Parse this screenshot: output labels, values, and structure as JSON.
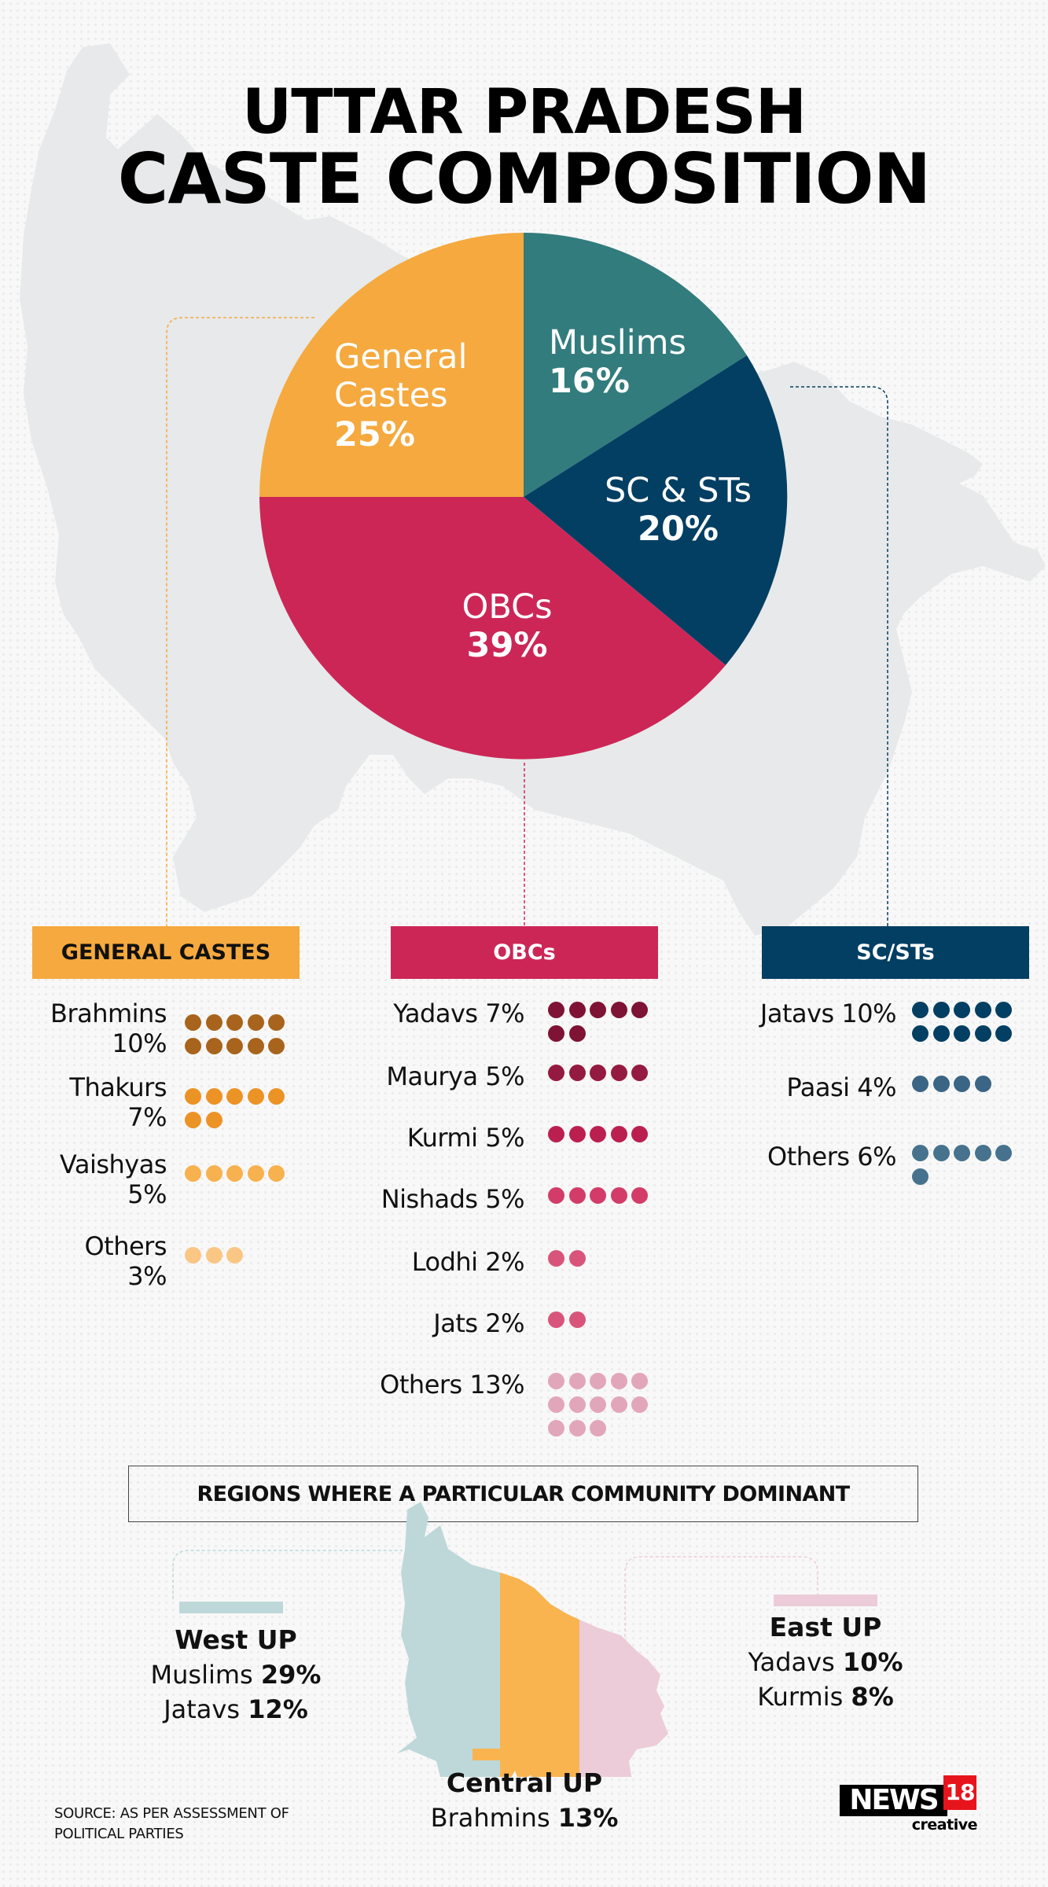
{
  "title": {
    "line1": "UTTAR PRADESH",
    "line2": "CASTE COMPOSITION"
  },
  "colors": {
    "general": "#f5a93e",
    "muslims": "#327c7d",
    "scst": "#033f63",
    "obc": "#cc2657",
    "map_bg": "#e7e9ea",
    "west_region": "#bed8d9",
    "central_region": "#f9b44f",
    "east_region": "#ecccd8"
  },
  "pie": {
    "slices": [
      {
        "label_line1": "General",
        "label_line2": "Castes",
        "value_text": "25%",
        "value": 25,
        "color": "#f5a93e"
      },
      {
        "label_line1": "Muslims",
        "label_line2": "",
        "value_text": "16%",
        "value": 16,
        "color": "#327c7d"
      },
      {
        "label_line1": "SC & STs",
        "label_line2": "",
        "value_text": "20%",
        "value": 20,
        "color": "#033f63"
      },
      {
        "label_line1": "OBCs",
        "label_line2": "",
        "value_text": "39%",
        "value": 39,
        "color": "#cc2657"
      }
    ]
  },
  "chart_data": {
    "type": "pie",
    "title": "UTTAR PRADESH CASTE COMPOSITION",
    "categories": [
      "General Castes",
      "Muslims",
      "SC & STs",
      "OBCs"
    ],
    "values": [
      25,
      16,
      20,
      39
    ],
    "colors": [
      "#f5a93e",
      "#327c7d",
      "#033f63",
      "#cc2657"
    ],
    "breakdowns": [
      {
        "group": "GENERAL CASTES",
        "type": "dot-count",
        "categories": [
          "Brahmins",
          "Thakurs",
          "Vaishyas",
          "Others"
        ],
        "values": [
          10,
          7,
          5,
          3
        ]
      },
      {
        "group": "OBCs",
        "type": "dot-count",
        "categories": [
          "Yadavs",
          "Maurya",
          "Kurmi",
          "Nishads",
          "Lodhi",
          "Jats",
          "Others"
        ],
        "values": [
          7,
          5,
          5,
          5,
          2,
          2,
          13
        ]
      },
      {
        "group": "SC/STs",
        "type": "dot-count",
        "categories": [
          "Jatavs",
          "Paasi",
          "Others"
        ],
        "values": [
          10,
          4,
          6
        ]
      }
    ],
    "regions": {
      "title": "REGIONS WHERE A PARTICULAR COMMUNITY DOMINANT",
      "series": [
        {
          "name": "West UP",
          "categories": [
            "Muslims",
            "Jatavs"
          ],
          "values": [
            29,
            12
          ]
        },
        {
          "name": "Central UP",
          "categories": [
            "Brahmins"
          ],
          "values": [
            13
          ]
        },
        {
          "name": "East UP",
          "categories": [
            "Yadavs",
            "Kurmis"
          ],
          "values": [
            10,
            8
          ]
        }
      ]
    }
  },
  "columns": {
    "general": {
      "header": "GENERAL CASTES",
      "rows": [
        {
          "name": "Brahmins",
          "pct": "10%",
          "count": 10,
          "color": "#a8641c"
        },
        {
          "name": "Thakurs",
          "pct": "7%",
          "count": 7,
          "color": "#ec9326"
        },
        {
          "name": "Vaishyas",
          "pct": "5%",
          "count": 5,
          "color": "#f7b14e"
        },
        {
          "name": "Others",
          "pct": "3%",
          "count": 3,
          "color": "#fac684"
        }
      ]
    },
    "obc": {
      "header": "OBCs",
      "rows": [
        {
          "name": "Yadavs 7%",
          "count": 7,
          "color": "#7e1335"
        },
        {
          "name": "Maurya 5%",
          "count": 5,
          "color": "#951a42"
        },
        {
          "name": "Kurmi 5%",
          "count": 5,
          "color": "#bb1f50"
        },
        {
          "name": "Nishads 5%",
          "count": 5,
          "color": "#d33c69"
        },
        {
          "name": "Lodhi 2%",
          "count": 2,
          "color": "#d9547b"
        },
        {
          "name": "Jats 2%",
          "count": 2,
          "color": "#d9547b"
        },
        {
          "name": "Others 13%",
          "count": 13,
          "color": "#e2a6ba"
        }
      ]
    },
    "scst": {
      "header": "SC/STs",
      "rows": [
        {
          "name": "Jatavs 10%",
          "count": 10,
          "color": "#033f63"
        },
        {
          "name": "Paasi 4%",
          "count": 4,
          "color": "#3b6584"
        },
        {
          "name": "Others 6%",
          "count": 6,
          "color": "#46728e"
        }
      ]
    }
  },
  "regions": {
    "title": "REGIONS WHERE A PARTICULAR COMMUNITY DOMINANT",
    "west": {
      "name": "West UP",
      "l1_name": "Muslims",
      "l1_val": "29%",
      "l2_name": "Jatavs",
      "l2_val": "12%"
    },
    "central": {
      "name": "Central UP",
      "l1_name": "Brahmins",
      "l1_val": "13%"
    },
    "east": {
      "name": "East UP",
      "l1_name": "Yadavs",
      "l1_val": "10%",
      "l2_name": "Kurmis",
      "l2_val": "8%"
    }
  },
  "footer": {
    "source_line1": "SOURCE: AS PER ASSESSMENT OF",
    "source_line2": "POLITICAL PARTIES",
    "logo_news": "NEWS",
    "logo_num": "18",
    "logo_sub": "creative"
  }
}
